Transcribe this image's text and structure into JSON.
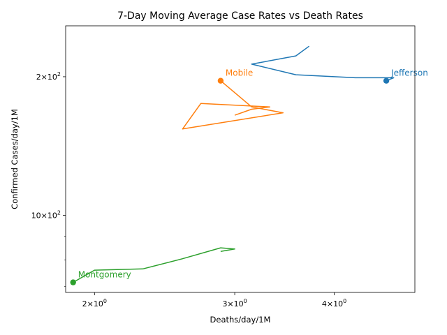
{
  "chart_data": {
    "type": "line",
    "title": "7-Day Moving Average Case Rates vs Death Rates",
    "xlabel": "Deaths/day/1M",
    "ylabel": "Confirmed Cases/day/1M",
    "xscale": "log",
    "yscale": "log",
    "xlim": [
      1.84,
      5.05
    ],
    "ylim": [
      68,
      258
    ],
    "x_major_ticks": [
      {
        "value": 2,
        "base": "2",
        "exp": "0"
      },
      {
        "value": 3,
        "base": "3",
        "exp": "0"
      },
      {
        "value": 4,
        "base": "4",
        "exp": "0"
      }
    ],
    "y_major_ticks": [
      {
        "value": 100,
        "base": "10",
        "exp": "2"
      },
      {
        "value": 200,
        "base": "2",
        "exp": "2"
      }
    ],
    "y_minor_ticks": [
      70,
      80,
      90
    ],
    "grid": false,
    "legend": "none",
    "series": [
      {
        "color": "#1f77b4",
        "x": [
          3.72,
          3.58,
          3.15,
          3.58,
          4.25,
          4.75,
          4.65
        ],
        "y": [
          233,
          222,
          213,
          202,
          199,
          199,
          196
        ],
        "current": {
          "x": 4.65,
          "y": 196
        },
        "label": "Jefferson"
      },
      {
        "color": "#ff7f0e",
        "x": [
          3.0,
          3.15,
          3.32,
          2.72,
          2.58,
          3.45,
          3.15,
          2.88
        ],
        "y": [
          165,
          170,
          172,
          175,
          154,
          167,
          172,
          196
        ],
        "current": {
          "x": 2.88,
          "y": 196
        },
        "label": "Mobile"
      },
      {
        "color": "#2ca02c",
        "x": [
          2.88,
          3.0,
          2.88,
          2.58,
          2.3,
          2.0,
          1.88
        ],
        "y": [
          83.5,
          84.5,
          85,
          80.5,
          76.5,
          76,
          71.5
        ],
        "current": {
          "x": 1.88,
          "y": 71.5
        },
        "label": "Montgomery"
      }
    ]
  }
}
